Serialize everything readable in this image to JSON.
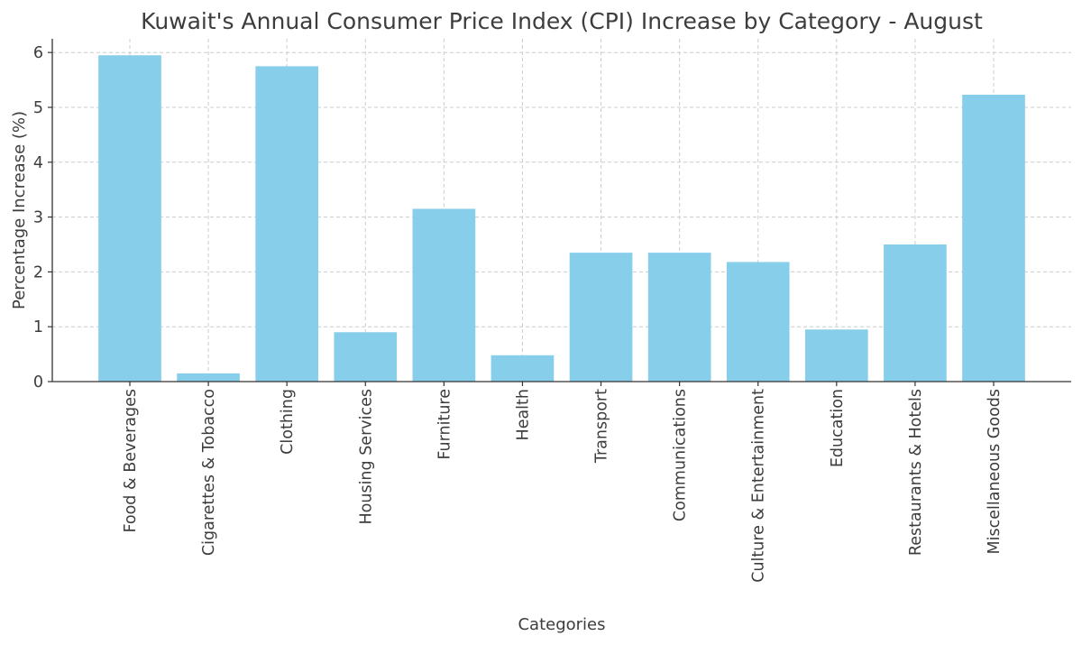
{
  "chart_data": {
    "type": "bar",
    "title": "Kuwait's Annual Consumer Price Index (CPI) Increase by Category - August",
    "xlabel": "Categories",
    "ylabel": "Percentage Increase (%)",
    "ylim": [
      0,
      6.25
    ],
    "yticks": [
      0,
      1,
      2,
      3,
      4,
      5,
      6
    ],
    "grid": true,
    "bar_color": "#87ceeb",
    "categories": [
      "Food & Beverages",
      "Cigarettes & Tobacco",
      "Clothing",
      "Housing Services",
      "Furniture",
      "Health",
      "Transport",
      "Communications",
      "Culture & Entertainment",
      "Education",
      "Restaurants & Hotels",
      "Miscellaneous Goods"
    ],
    "values": [
      5.95,
      0.15,
      5.75,
      0.9,
      3.15,
      0.48,
      2.35,
      2.35,
      2.18,
      0.95,
      2.5,
      5.23
    ]
  }
}
